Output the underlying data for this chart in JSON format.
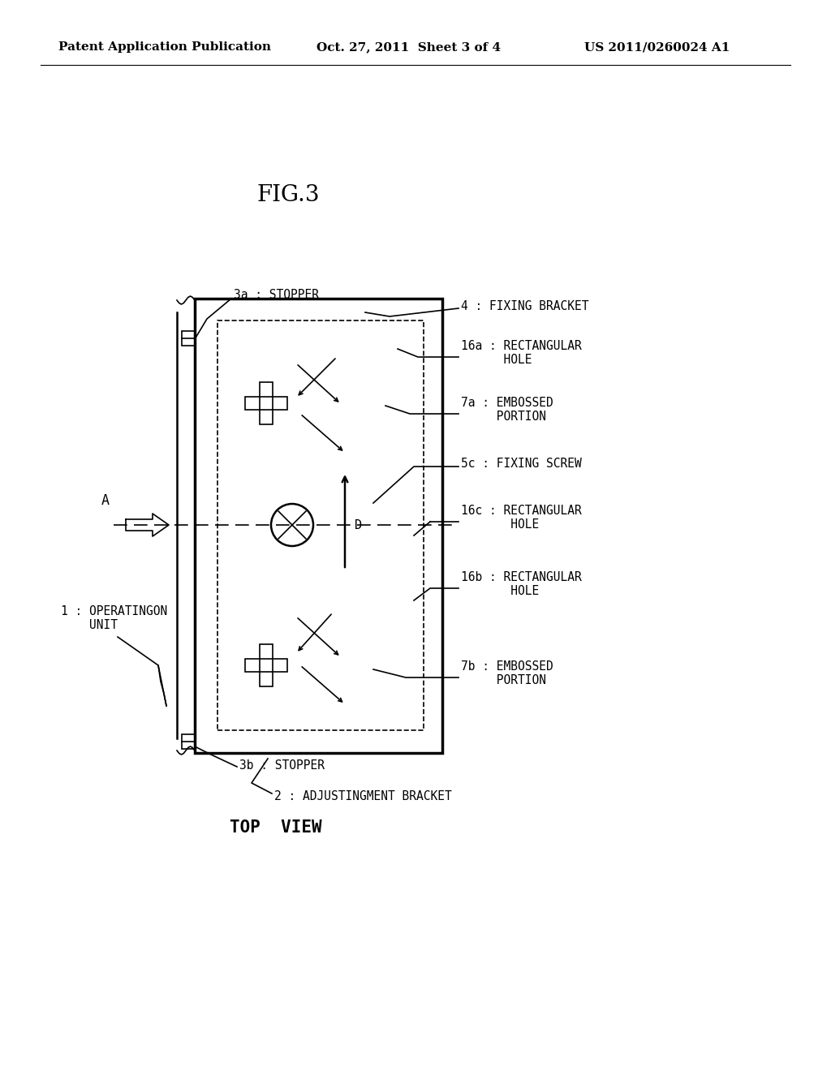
{
  "bg_color": "#ffffff",
  "header_left": "Patent Application Publication",
  "header_mid": "Oct. 27, 2011  Sheet 3 of 4",
  "header_right": "US 2011/0260024 A1",
  "fig_label": "FIG.3",
  "view_label": "TOP  VIEW",
  "lw_main": 1.8,
  "lw_thin": 1.2,
  "lw_thick": 2.5,
  "header_fontsize": 11,
  "fig_fontsize": 20,
  "label_fontsize": 10.5,
  "view_fontsize": 15
}
